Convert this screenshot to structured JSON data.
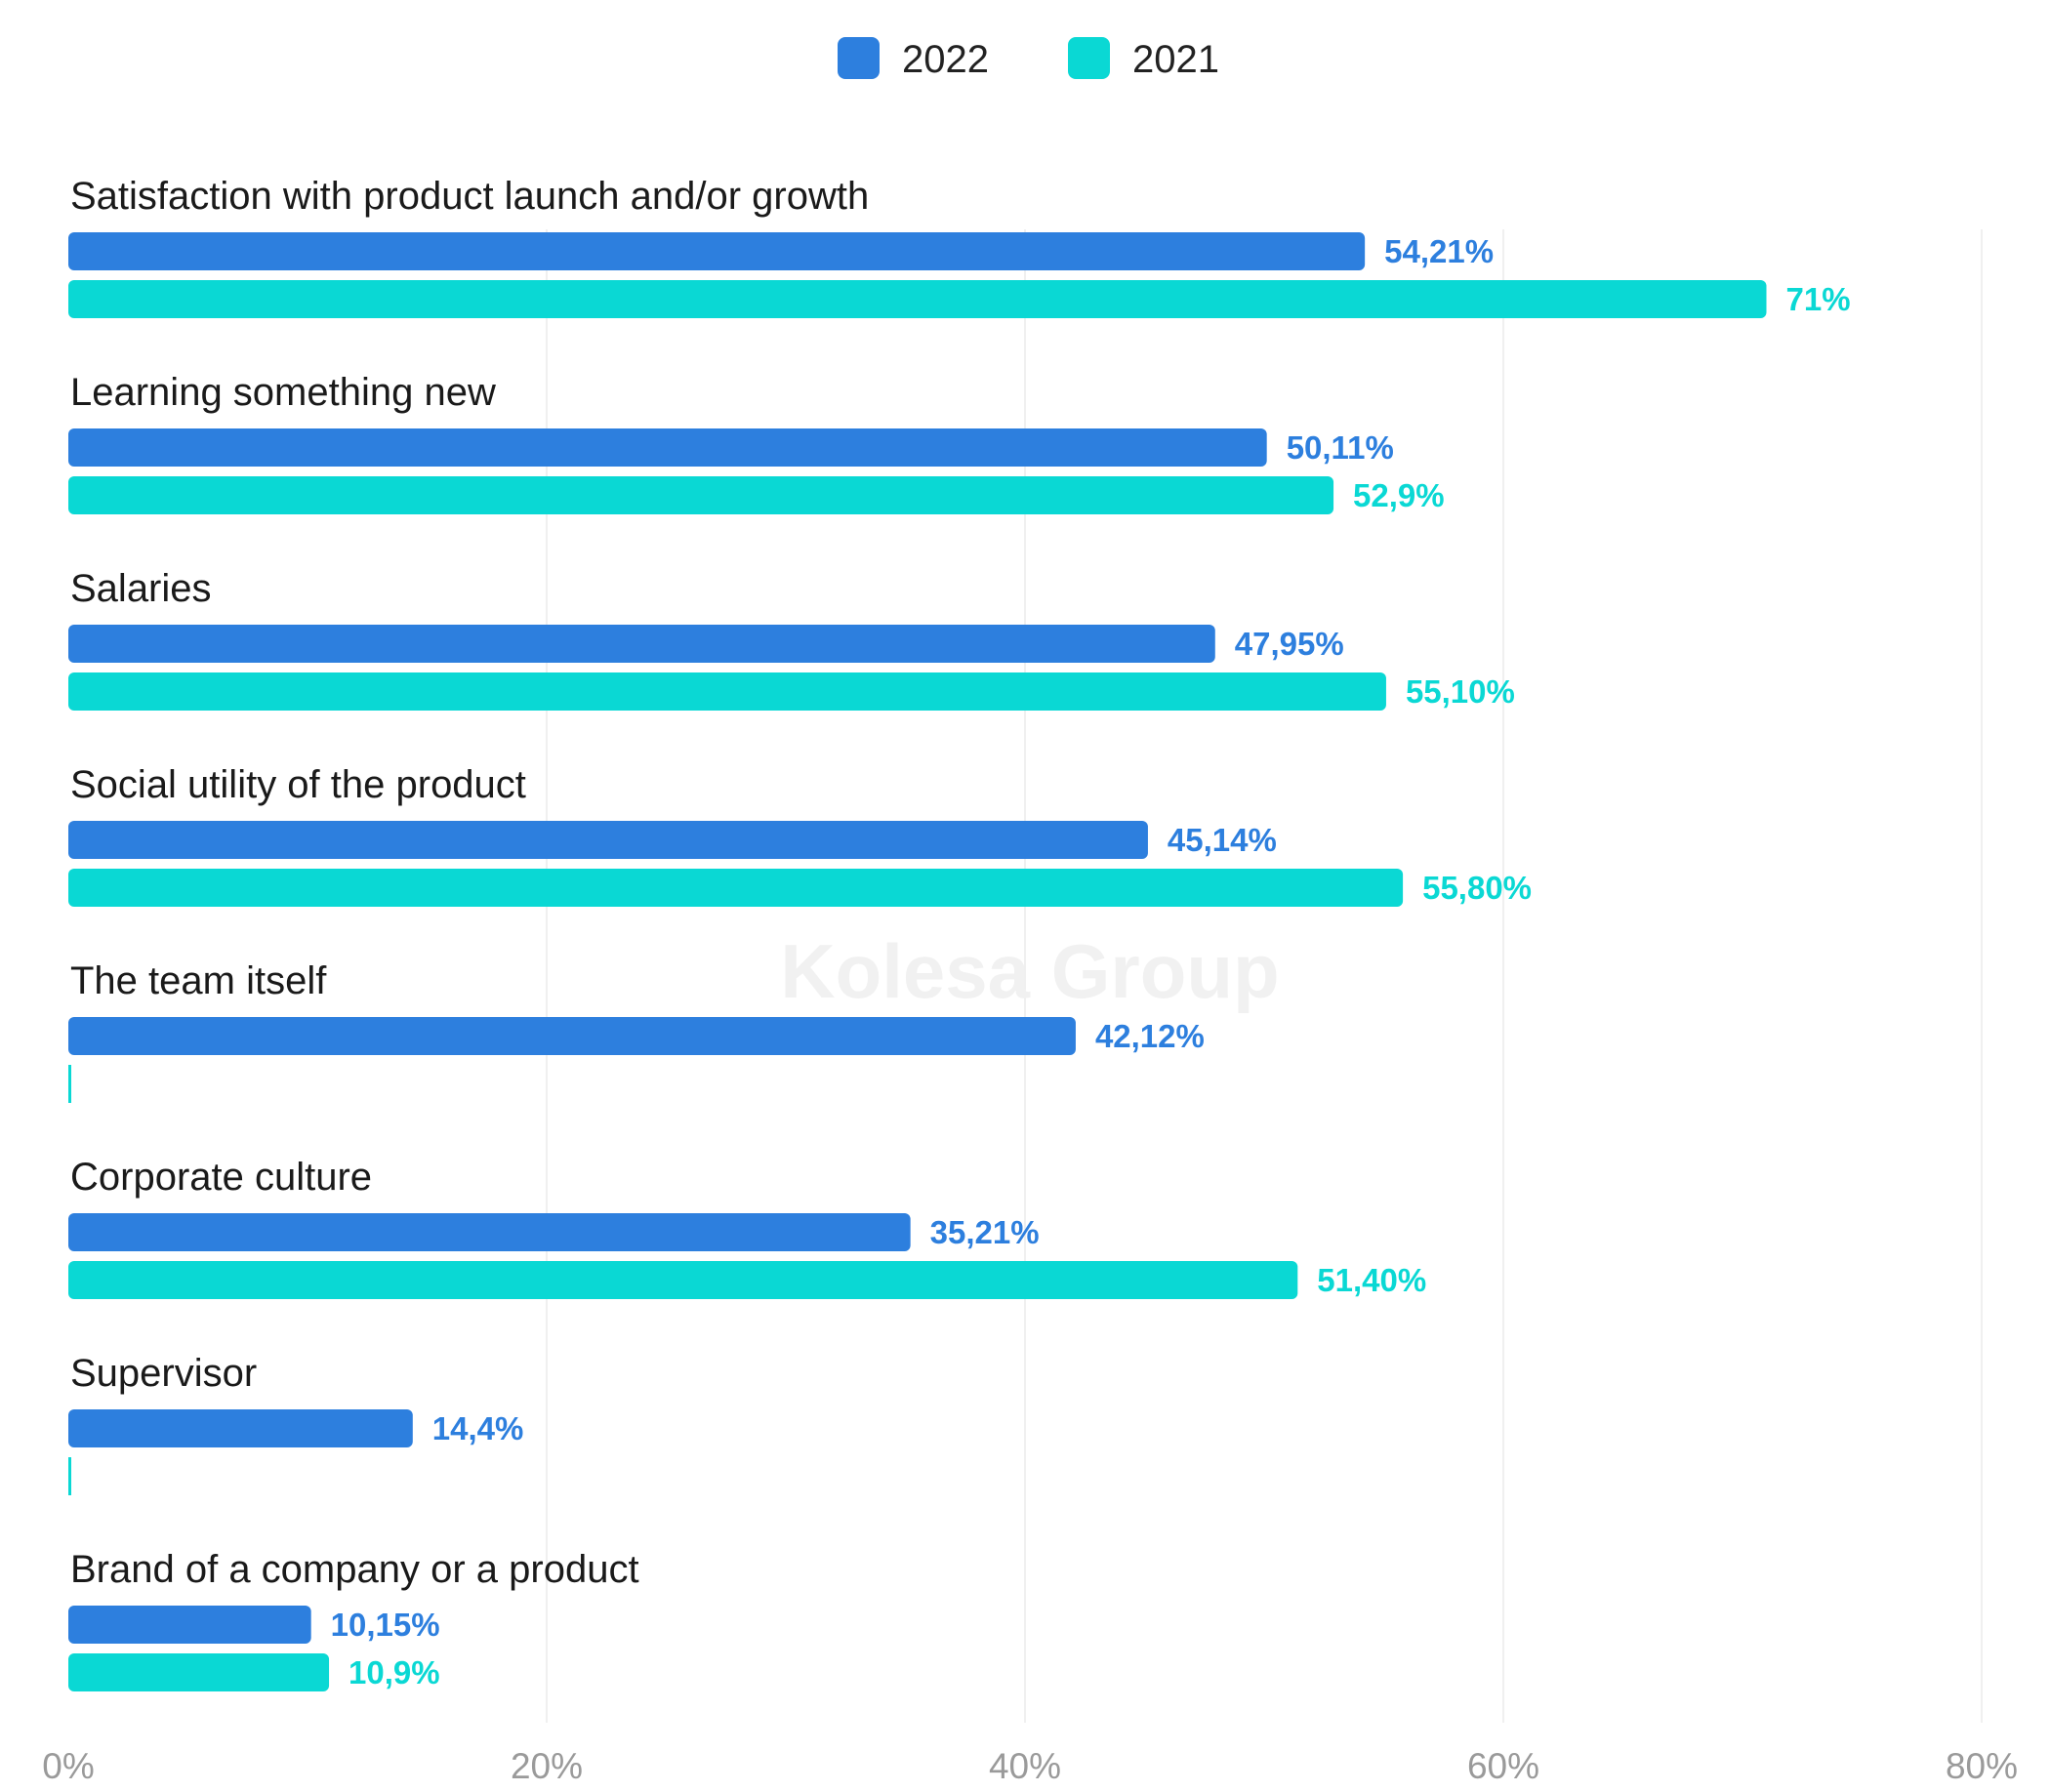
{
  "chart_data": {
    "type": "bar",
    "orientation": "horizontal",
    "categories": [
      "Satisfaction with product launch and/or growth",
      "Learning something new",
      "Salaries",
      "Social utility of the product",
      "The team itself",
      "Corporate culture",
      "Supervisor",
      "Brand of a company or a product"
    ],
    "series": [
      {
        "name": "2022",
        "color": "#2d7fde",
        "values": [
          54.21,
          50.11,
          47.95,
          45.14,
          42.12,
          35.21,
          14.4,
          10.15
        ],
        "labels": [
          "54,21%",
          "50,11%",
          "47,95%",
          "45,14%",
          "42,12%",
          "35,21%",
          "14,4%",
          "10,15%"
        ]
      },
      {
        "name": "2021",
        "color": "#0ad8d4",
        "values": [
          71,
          52.9,
          55.1,
          55.8,
          null,
          51.4,
          null,
          10.9
        ],
        "labels": [
          "71%",
          "52,9%",
          "55,10%",
          "55,80%",
          "",
          "51,40%",
          "",
          "10,9%"
        ]
      }
    ],
    "xlim": [
      0,
      80
    ],
    "xticks": [
      0,
      20,
      40,
      60,
      80
    ],
    "xtick_labels": [
      "0%",
      "20%",
      "40%",
      "60%",
      "80%"
    ],
    "grid": true,
    "legend_position": "top-center",
    "watermark": "Kolesa Group"
  }
}
